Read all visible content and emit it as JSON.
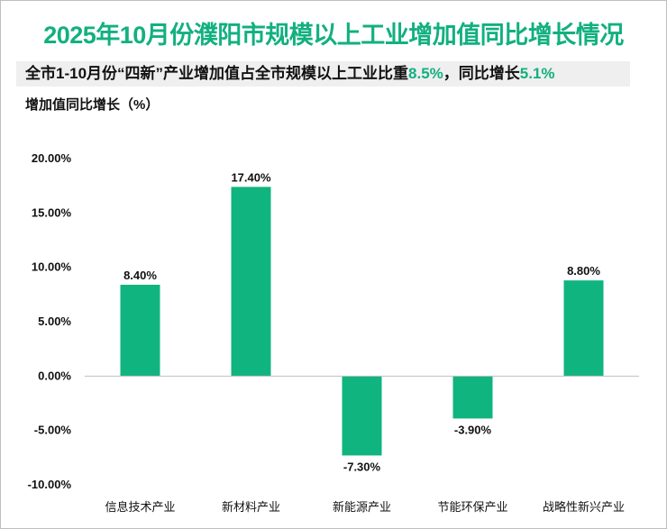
{
  "chart_data": {
    "type": "bar",
    "title": "2025年10月份濮阳市规模以上工业增加值同比增长情况",
    "subtitle": {
      "text1": "全市1-10月份“四新”产业增加值占全市规模以上工业比重",
      "value1": "8.5%",
      "text2": "，同比增长",
      "value2": "5.1%"
    },
    "ylabel": "增加值同比增长（%）",
    "xlabel": "",
    "categories": [
      "信息技术产业",
      "新材料产业",
      "新能源产业",
      "节能环保产业",
      "战略性新兴产业"
    ],
    "values": [
      8.4,
      17.4,
      -7.3,
      -3.9,
      8.8
    ],
    "data_labels": [
      "8.40%",
      "17.40%",
      "-7.30%",
      "-3.90%",
      "8.80%"
    ],
    "ylim": [
      -10,
      20
    ],
    "yticks": [
      -10,
      -5,
      0,
      5,
      10,
      15,
      20
    ],
    "ytick_labels": [
      "-10.00%",
      "-5.00%",
      "0.00%",
      "5.00%",
      "10.00%",
      "15.00%",
      "20.00%"
    ],
    "grid": false,
    "bar_color": "#10b47f",
    "accent_color": "#12b07f"
  }
}
